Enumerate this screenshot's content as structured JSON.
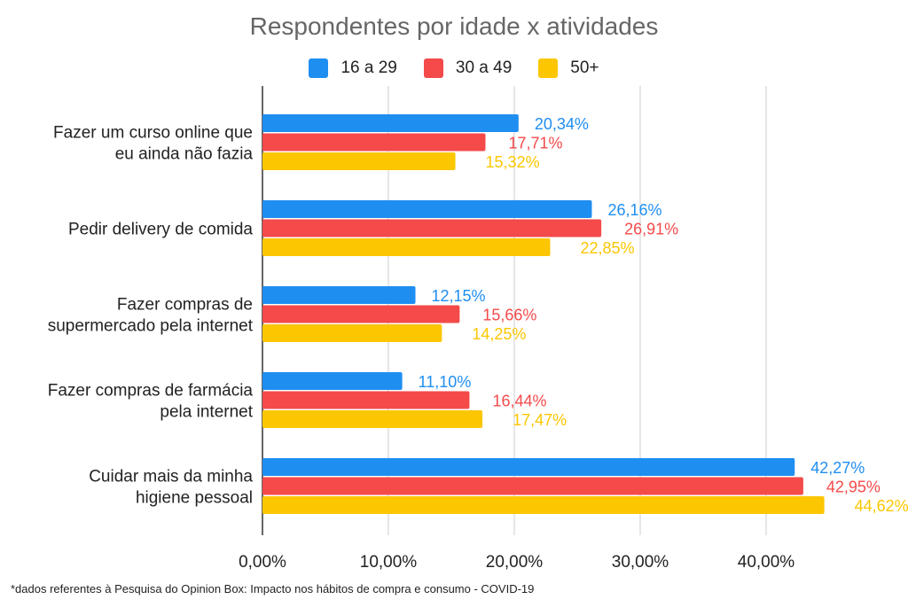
{
  "chart_data": {
    "type": "bar",
    "orientation": "horizontal",
    "title": "Respondentes por idade x atividades",
    "categories": [
      [
        "Fazer um curso online que",
        "eu ainda não fazia"
      ],
      [
        "Pedir delivery de comida"
      ],
      [
        "Fazer compras de",
        "supermercado pela internet"
      ],
      [
        "Fazer compras de farmácia",
        "pela internet"
      ],
      [
        "Cuidar mais da minha",
        "higiene pessoal"
      ]
    ],
    "series": [
      {
        "name": "16 a 29",
        "color": "#1f8ef1",
        "values": [
          20.34,
          26.16,
          12.15,
          11.1,
          42.27
        ],
        "labels": [
          "20,34%",
          "26,16%",
          "12,15%",
          "11,10%",
          "42,27%"
        ]
      },
      {
        "name": "30 a 49",
        "color": "#f44a4a",
        "values": [
          17.71,
          26.91,
          15.66,
          16.44,
          42.95
        ],
        "labels": [
          "17,71%",
          "26,91%",
          "15,66%",
          "16,44%",
          "42,95%"
        ]
      },
      {
        "name": "50+",
        "color": "#fcc600",
        "values": [
          15.32,
          22.85,
          14.25,
          17.47,
          44.62
        ],
        "labels": [
          "15,32%",
          "22,85%",
          "14,25%",
          "17,47%",
          "44,62%"
        ]
      }
    ],
    "xlim": [
      0,
      50
    ],
    "xticks": [
      0,
      10,
      20,
      30,
      40
    ],
    "xtick_labels": [
      "0,00%",
      "10,00%",
      "20,00%",
      "30,00%",
      "40,00%"
    ],
    "grid": true,
    "legend_position": "top"
  },
  "footnote": "*dados referentes à Pesquisa do Opinion Box: Impacto nos hábitos de compra e consumo - COVID-19"
}
